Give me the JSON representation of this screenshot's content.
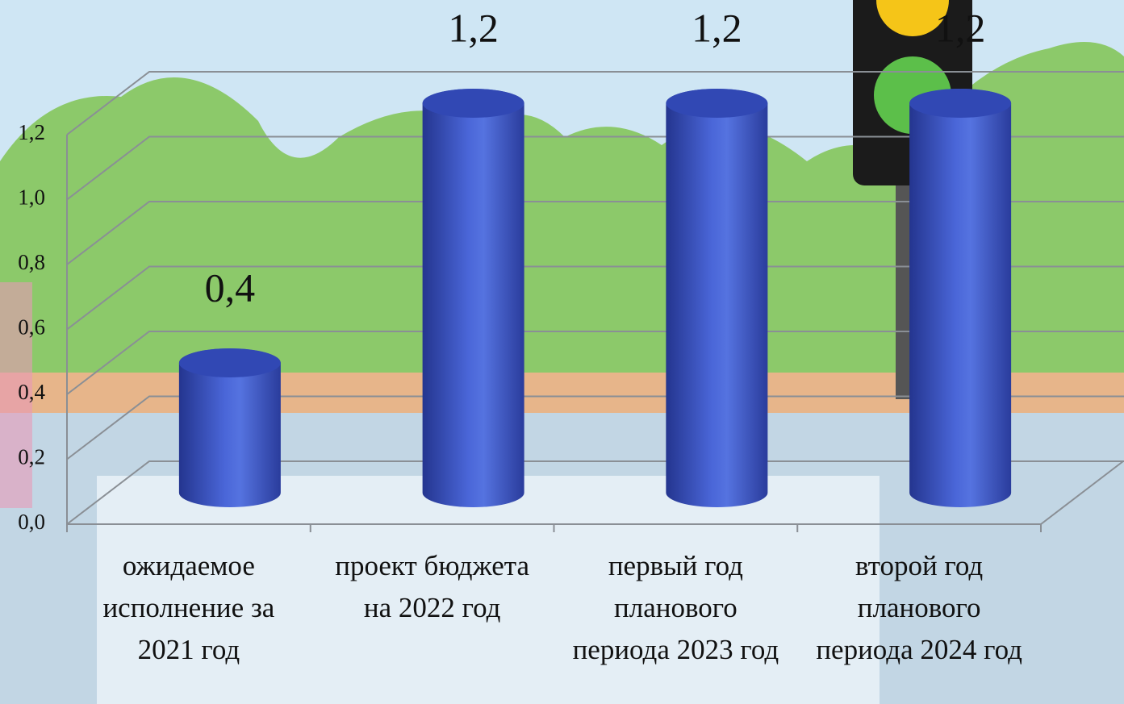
{
  "chart_data": {
    "type": "bar3d",
    "categories": [
      "ожидаемое исполнение за 2021 год",
      "проект бюджета на 2022 год",
      "первый год планового периода 2023 год",
      "второй год планового периода 2024 год"
    ],
    "values": [
      0.4,
      1.2,
      1.2,
      1.2
    ],
    "value_labels": [
      "0,4",
      "1,2",
      "1,2",
      "1,2"
    ],
    "color": "#4a66d8",
    "ylim": [
      0,
      1.2
    ],
    "yticks": [
      {
        "value": 0,
        "label": "0,0"
      },
      {
        "value": 0.2,
        "label": "0,2"
      },
      {
        "value": 0.4,
        "label": "0,4"
      },
      {
        "value": 0.6,
        "label": "0,6"
      },
      {
        "value": 0.8,
        "label": "0,8"
      },
      {
        "value": 1.0,
        "label": "1,0"
      },
      {
        "value": 1.2,
        "label": "1,2"
      }
    ],
    "grid": true
  }
}
